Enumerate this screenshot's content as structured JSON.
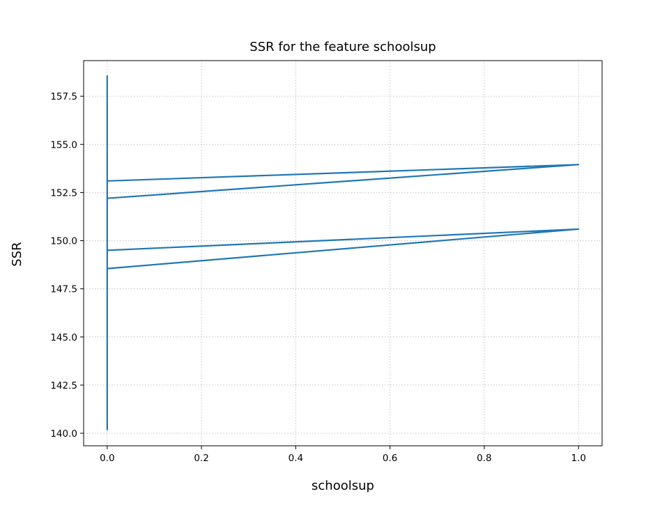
{
  "chart_data": {
    "type": "line",
    "title": "SSR for the feature schoolsup",
    "xlabel": "schoolsup",
    "ylabel": "SSR",
    "xlim": [
      -0.05,
      1.05
    ],
    "ylim": [
      139.35,
      159.35
    ],
    "xticks": [
      0.0,
      0.2,
      0.4,
      0.6,
      0.8,
      1.0
    ],
    "xtick_labels": [
      "0.0",
      "0.2",
      "0.4",
      "0.6",
      "0.8",
      "1.0"
    ],
    "yticks": [
      140.0,
      142.5,
      145.0,
      147.5,
      150.0,
      152.5,
      155.0,
      157.5
    ],
    "ytick_labels": [
      "140.0",
      "142.5",
      "145.0",
      "147.5",
      "150.0",
      "152.5",
      "155.0",
      "157.5"
    ],
    "grid": true,
    "series": [
      {
        "color": "#1f77b4",
        "x": [
          0,
          0,
          0,
          0,
          0,
          0,
          0,
          1,
          0,
          0,
          1,
          0,
          0,
          0,
          0
        ],
        "y": [
          140.2,
          149.9,
          144.9,
          158.5,
          145.2,
          158.3,
          148.55,
          150.6,
          149.5,
          152.2,
          153.95,
          153.1,
          145.1,
          158.55,
          145.0
        ]
      }
    ]
  }
}
